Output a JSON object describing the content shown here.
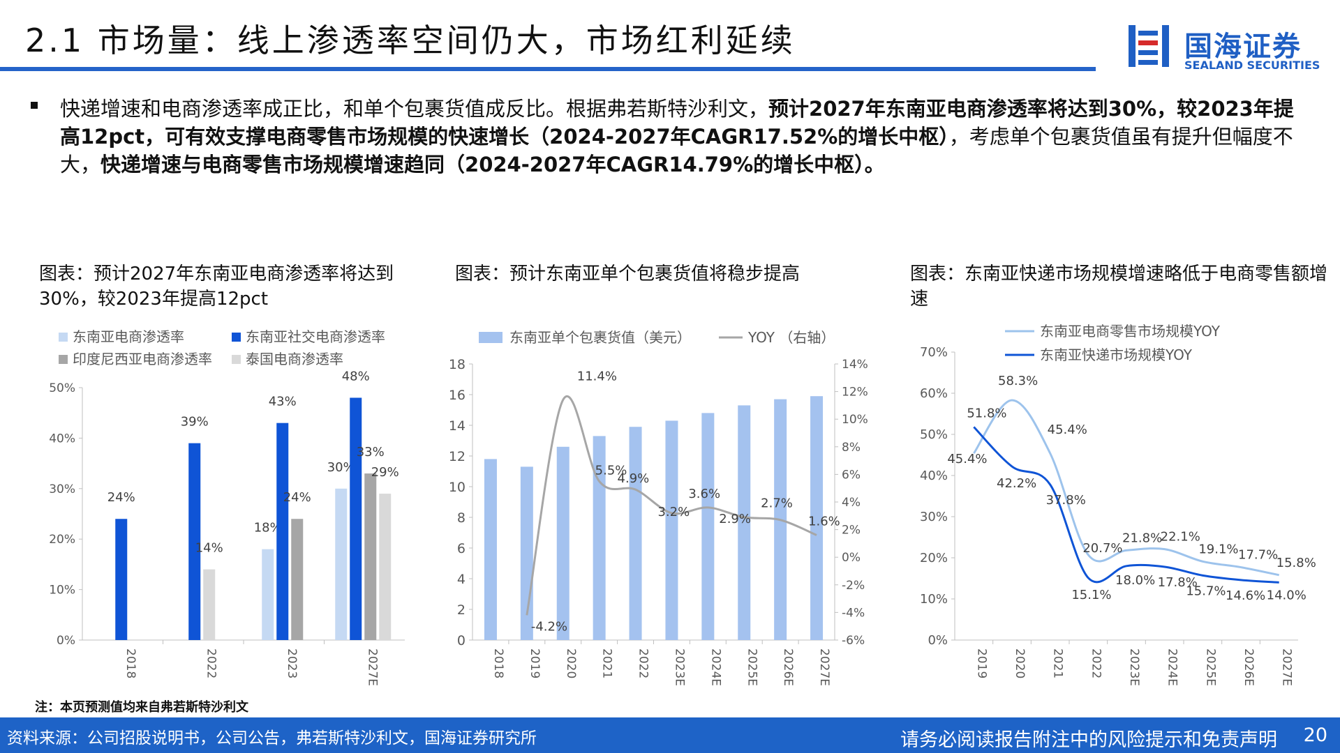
{
  "header": {
    "title": "2.1 市场量：线上渗透率空间仍大，市场红利延续",
    "logo_cn": "国海证券",
    "logo_en": "SEALAND SECURITIES"
  },
  "body": {
    "para_plain_1": "快递增速和电商渗透率成正比，和单个包裹货值成反比。根据弗若斯特沙利文，",
    "para_bold_1": "预计2027年东南亚电商渗透率将达到30%，较2023年提高12pct，可有效支撑电商零售市场规模的快速增长（2024-2027年CAGR17.52%的增长中枢）",
    "para_plain_2": "，考虑单个包裹货值虽有提升但幅度不大，",
    "para_bold_2": "快递增速与电商零售市场规模增速趋同（2024-2027年CAGR14.79%的增长中枢）。"
  },
  "captions": {
    "c1": "图表：预计2027年东南亚电商渗透率将达到30%，较2023年提高12pct",
    "c2": "图表：预计东南亚单个包裹货值将稳步提高",
    "c3": "图表：东南亚快递市场规模增速略低于电商零售额增速"
  },
  "note": "注：本页预测值均来自弗若斯特沙利文",
  "footer": {
    "source": "资料来源：公司招股说明书，公司公告，弗若斯特沙利文，国海证券研究所",
    "disclaimer": "请务必阅读报告附注中的风险提示和免责声明",
    "page": "20"
  },
  "colors": {
    "accent": "#1e63c7",
    "sea_ecom": "#c5d9f3",
    "sea_social": "#0f54d6",
    "indonesia": "#a6a6a6",
    "thailand": "#d9d9d9",
    "parcel_bar": "#a4c2ef",
    "yoy_line": "#a6a6a6",
    "retail_line": "#9dc3ec",
    "express_line": "#0f54d6"
  },
  "chart_data": [
    {
      "type": "bar",
      "categories": [
        "2018",
        "2022",
        "2023",
        "2027E"
      ],
      "ylim": [
        0,
        50
      ],
      "yticks": [
        "0%",
        "10%",
        "20%",
        "30%",
        "40%",
        "50%"
      ],
      "series": [
        {
          "name": "东南亚电商渗透率",
          "values": [
            null,
            null,
            18,
            30
          ],
          "labels": [
            "",
            "",
            "18%",
            "30%"
          ]
        },
        {
          "name": "东南亚社交电商渗透率",
          "values": [
            24,
            39,
            43,
            48
          ],
          "labels": [
            "24%",
            "39%",
            "43%",
            "48%"
          ]
        },
        {
          "name": "印度尼西亚电商渗透率",
          "values": [
            null,
            null,
            24,
            33
          ],
          "labels": [
            "",
            "",
            "24%",
            "33%"
          ]
        },
        {
          "name": "泰国电商渗透率",
          "values": [
            null,
            14,
            null,
            29
          ],
          "labels": [
            "",
            "14%",
            "",
            "29%"
          ]
        }
      ],
      "legend_position": "top"
    },
    {
      "type": "bar",
      "categories": [
        "2018",
        "2019",
        "2020",
        "2021",
        "2022",
        "2023E",
        "2024E",
        "2025E",
        "2026E",
        "2027E"
      ],
      "ylim": [
        0,
        18
      ],
      "yticks": [
        "0",
        "2",
        "4",
        "6",
        "8",
        "10",
        "12",
        "14",
        "16",
        "18"
      ],
      "y2lim": [
        -6,
        14
      ],
      "y2ticks": [
        "-6%",
        "-4%",
        "-2%",
        "0%",
        "2%",
        "4%",
        "6%",
        "8%",
        "10%",
        "12%",
        "14%"
      ],
      "series": [
        {
          "name": "东南亚单个包裹货值（美元）",
          "type": "bar",
          "values": [
            11.8,
            11.3,
            12.6,
            13.3,
            13.9,
            14.3,
            14.8,
            15.3,
            15.7,
            15.9
          ]
        },
        {
          "name": "YOY （右轴）",
          "type": "line",
          "axis": "right",
          "x": [
            "2019",
            "2020",
            "2021",
            "2022",
            "2023E",
            "2024E",
            "2025E",
            "2026E",
            "2027E"
          ],
          "values": [
            -4.2,
            11.4,
            5.5,
            4.9,
            3.2,
            3.6,
            2.9,
            2.7,
            1.6
          ],
          "labels": [
            "-4.2%",
            "11.4%",
            "5.5%",
            "4.9%",
            "3.2%",
            "3.6%",
            "2.9%",
            "2.7%",
            "1.6%"
          ]
        }
      ],
      "legend_position": "top"
    },
    {
      "type": "line",
      "categories": [
        "2019",
        "2020",
        "2021",
        "2022",
        "2023E",
        "2024E",
        "2025E",
        "2026E",
        "2027E"
      ],
      "ylim": [
        0,
        70
      ],
      "yticks": [
        "0%",
        "10%",
        "20%",
        "30%",
        "40%",
        "50%",
        "60%",
        "70%"
      ],
      "series": [
        {
          "name": "东南亚电商零售市场规模YOY",
          "values": [
            45.4,
            58.3,
            45.4,
            20.7,
            21.8,
            22.1,
            19.1,
            17.7,
            15.8
          ],
          "labels": [
            "45.4%",
            "58.3%",
            "45.4%",
            "20.7%",
            "21.8%",
            "22.1%",
            "19.1%",
            "17.7%",
            "15.8%"
          ]
        },
        {
          "name": "东南亚快递市场规模YOY",
          "values": [
            51.8,
            42.2,
            37.8,
            15.1,
            18.0,
            17.8,
            15.7,
            14.6,
            14.0
          ],
          "labels": [
            "51.8%",
            "42.2%",
            "37.8%",
            "15.1%",
            "18.0%",
            "17.8%",
            "15.7%",
            "14.6%",
            "14.0%"
          ]
        }
      ],
      "legend_position": "top"
    }
  ]
}
